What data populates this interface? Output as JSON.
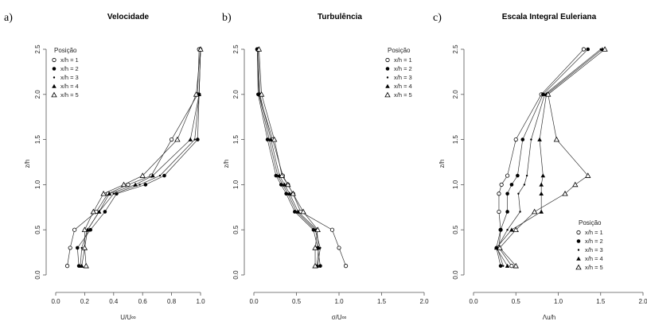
{
  "chart_data": [
    {
      "panel_label": "a)",
      "type": "line",
      "title": "Velocidade",
      "xlabel": "U/U∞",
      "ylabel": "z/h",
      "xlim": [
        0,
        1
      ],
      "ylim": [
        0,
        2.5
      ],
      "xticks": [
        "0.0",
        "0.2",
        "0.4",
        "0.6",
        "0.8",
        "1.0"
      ],
      "yticks": [
        "0.0",
        "0.5",
        "1.0",
        "1.5",
        "2.0",
        "2.5"
      ],
      "legend": {
        "title": "Posição",
        "placement": "top-left"
      },
      "series": [
        {
          "name": "x/h = 1",
          "marker": "open-circle",
          "x": [
            0.08,
            0.1,
            0.13,
            0.28,
            0.36,
            0.5,
            0.66,
            0.8,
            0.98,
            0.99
          ],
          "y": [
            0.1,
            0.3,
            0.5,
            0.7,
            0.9,
            1.0,
            1.1,
            1.5,
            2.0,
            2.5
          ]
        },
        {
          "name": "x/h = 2",
          "marker": "filled-circle",
          "x": [
            0.16,
            0.15,
            0.24,
            0.34,
            0.42,
            0.62,
            0.75,
            0.98,
            0.99,
            1.0
          ],
          "y": [
            0.1,
            0.3,
            0.5,
            0.7,
            0.9,
            1.0,
            1.1,
            1.5,
            2.0,
            2.5
          ]
        },
        {
          "name": "x/h = 3",
          "marker": "small-dot",
          "x": [
            0.17,
            0.18,
            0.22,
            0.3,
            0.4,
            0.58,
            0.72,
            0.96,
            0.99,
            1.0
          ],
          "y": [
            0.1,
            0.3,
            0.5,
            0.7,
            0.9,
            1.0,
            1.1,
            1.5,
            2.0,
            2.5
          ]
        },
        {
          "name": "x/h = 4",
          "marker": "filled-triangle",
          "x": [
            0.18,
            0.2,
            0.22,
            0.3,
            0.37,
            0.55,
            0.67,
            0.93,
            0.99,
            1.0
          ],
          "y": [
            0.1,
            0.3,
            0.5,
            0.7,
            0.9,
            1.0,
            1.1,
            1.5,
            2.0,
            2.5
          ]
        },
        {
          "name": "x/h = 5",
          "marker": "open-triangle",
          "x": [
            0.21,
            0.2,
            0.2,
            0.26,
            0.33,
            0.47,
            0.6,
            0.84,
            0.97,
            1.0
          ],
          "y": [
            0.1,
            0.3,
            0.5,
            0.7,
            0.9,
            1.0,
            1.1,
            1.5,
            2.0,
            2.5
          ]
        }
      ]
    },
    {
      "panel_label": "b)",
      "type": "line",
      "title": "Turbulência",
      "xlabel": "σ/U∞",
      "ylabel": "z/h",
      "xlim": [
        0,
        2.0
      ],
      "ylim": [
        0,
        2.5
      ],
      "xticks": [
        "0.0",
        "0.5",
        "1.0",
        "1.5",
        "2.0"
      ],
      "yticks": [
        "0.0",
        "0.5",
        "1.0",
        "1.5",
        "2.0",
        "2.5"
      ],
      "legend": {
        "title": "Posição",
        "placement": "top-right"
      },
      "series": [
        {
          "name": "x/h = 1",
          "marker": "open-circle",
          "x": [
            1.08,
            1.0,
            0.92,
            0.55,
            0.46,
            0.4,
            0.34,
            0.22,
            0.06,
            0.04
          ],
          "y": [
            0.1,
            0.3,
            0.5,
            0.7,
            0.9,
            1.0,
            1.1,
            1.5,
            2.0,
            2.5
          ]
        },
        {
          "name": "x/h = 2",
          "marker": "filled-circle",
          "x": [
            0.78,
            0.75,
            0.7,
            0.48,
            0.38,
            0.32,
            0.26,
            0.16,
            0.05,
            0.04
          ],
          "y": [
            0.1,
            0.3,
            0.5,
            0.7,
            0.9,
            1.0,
            1.1,
            1.5,
            2.0,
            2.5
          ]
        },
        {
          "name": "x/h = 3",
          "marker": "small-dot",
          "x": [
            0.75,
            0.78,
            0.72,
            0.5,
            0.4,
            0.34,
            0.28,
            0.18,
            0.06,
            0.04
          ],
          "y": [
            0.1,
            0.3,
            0.5,
            0.7,
            0.9,
            1.0,
            1.1,
            1.5,
            2.0,
            2.5
          ]
        },
        {
          "name": "x/h = 4",
          "marker": "filled-triangle",
          "x": [
            0.74,
            0.76,
            0.74,
            0.52,
            0.42,
            0.36,
            0.3,
            0.2,
            0.07,
            0.05
          ],
          "y": [
            0.1,
            0.3,
            0.5,
            0.7,
            0.9,
            1.0,
            1.1,
            1.5,
            2.0,
            2.5
          ]
        },
        {
          "name": "x/h = 5",
          "marker": "open-triangle",
          "x": [
            0.72,
            0.72,
            0.75,
            0.58,
            0.46,
            0.4,
            0.33,
            0.24,
            0.09,
            0.06
          ],
          "y": [
            0.1,
            0.3,
            0.5,
            0.7,
            0.9,
            1.0,
            1.1,
            1.5,
            2.0,
            2.5
          ]
        }
      ]
    },
    {
      "panel_label": "c)",
      "type": "line",
      "title": "Escala Integral Euleriana",
      "xlabel": "Λu/h",
      "ylabel": "z/h",
      "xlim": [
        0,
        2.0
      ],
      "ylim": [
        0,
        2.5
      ],
      "xticks": [
        "0.0",
        "0.5",
        "1.0",
        "1.5",
        "2.0"
      ],
      "yticks": [
        "0.0",
        "0.5",
        "1.0",
        "1.5",
        "2.0",
        "2.5"
      ],
      "legend": {
        "title": "Posição",
        "placement": "bottom-right"
      },
      "series": [
        {
          "name": "x/h = 1",
          "marker": "open-circle",
          "x": [
            0.45,
            0.3,
            0.32,
            0.3,
            0.3,
            0.33,
            0.4,
            0.5,
            0.8,
            1.3
          ],
          "y": [
            0.1,
            0.3,
            0.5,
            0.7,
            0.9,
            1.0,
            1.1,
            1.5,
            2.0,
            2.5
          ]
        },
        {
          "name": "x/h = 2",
          "marker": "filled-circle",
          "x": [
            0.32,
            0.27,
            0.32,
            0.4,
            0.4,
            0.45,
            0.52,
            0.58,
            0.82,
            1.35
          ],
          "y": [
            0.1,
            0.3,
            0.5,
            0.7,
            0.9,
            1.0,
            1.1,
            1.5,
            2.0,
            2.5
          ]
        },
        {
          "name": "x/h = 3",
          "marker": "small-dot",
          "x": [
            0.35,
            0.28,
            0.4,
            0.55,
            0.53,
            0.6,
            0.63,
            0.68,
            0.84,
            1.5
          ],
          "y": [
            0.1,
            0.3,
            0.5,
            0.7,
            0.9,
            1.0,
            1.1,
            1.5,
            2.0,
            2.5
          ]
        },
        {
          "name": "x/h = 4",
          "marker": "filled-triangle",
          "x": [
            0.4,
            0.27,
            0.45,
            0.8,
            0.8,
            0.8,
            0.82,
            0.78,
            0.86,
            1.52
          ],
          "y": [
            0.1,
            0.3,
            0.5,
            0.7,
            0.9,
            1.0,
            1.1,
            1.5,
            2.0,
            2.5
          ]
        },
        {
          "name": "x/h = 5",
          "marker": "open-triangle",
          "x": [
            0.5,
            0.31,
            0.5,
            0.72,
            1.08,
            1.2,
            1.35,
            0.98,
            0.88,
            1.55
          ],
          "y": [
            0.1,
            0.3,
            0.5,
            0.7,
            0.9,
            1.0,
            1.1,
            1.5,
            2.0,
            2.5
          ]
        }
      ]
    }
  ]
}
